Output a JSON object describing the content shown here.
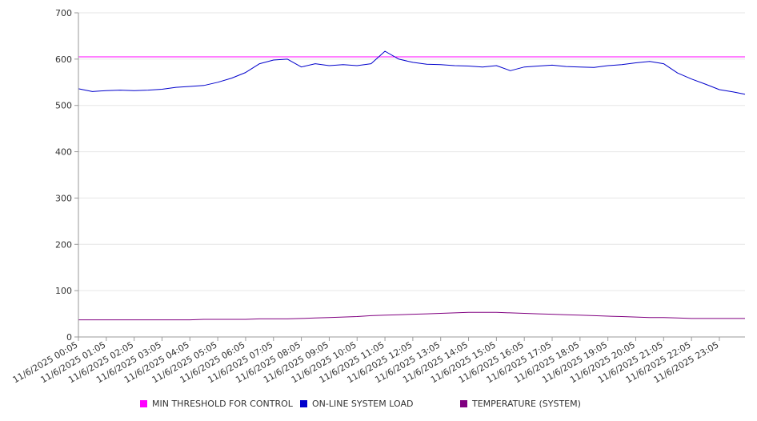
{
  "chart_data": {
    "type": "line",
    "title": "",
    "xlabel": "",
    "ylabel": "",
    "ylim": [
      0,
      700
    ],
    "yticks": [
      0,
      100,
      200,
      300,
      400,
      500,
      600,
      700
    ],
    "grid": true,
    "legend_position": "bottom",
    "x_start": "11/6/2025 00:05",
    "x_tick_labels": [
      "11/6/2025 00:05",
      "11/6/2025 01:05",
      "11/6/2025 02:05",
      "11/6/2025 03:05",
      "11/6/2025 04:05",
      "11/6/2025 05:05",
      "11/6/2025 06:05",
      "11/6/2025 07:05",
      "11/6/2025 08:05",
      "11/6/2025 09:05",
      "11/6/2025 10:05",
      "11/6/2025 11:05",
      "11/6/2025 12:05",
      "11/6/2025 13:05",
      "11/6/2025 14:05",
      "11/6/2025 15:05",
      "11/6/2025 16:05",
      "11/6/2025 17:05",
      "11/6/2025 18:05",
      "11/6/2025 19:05",
      "11/6/2025 20:05",
      "11/6/2025 21:05",
      "11/6/2025 22:05",
      "11/6/2025 23:05"
    ],
    "x_hours": [
      0,
      0.5,
      1,
      1.5,
      2,
      2.5,
      3,
      3.5,
      4,
      4.5,
      5,
      5.5,
      6,
      6.5,
      7,
      7.5,
      8,
      8.5,
      9,
      9.5,
      10,
      10.5,
      11,
      11.5,
      12,
      12.5,
      13,
      13.5,
      14,
      14.5,
      15,
      15.5,
      16,
      16.5,
      17,
      17.5,
      18,
      18.5,
      19,
      19.5,
      20,
      20.5,
      21,
      21.5,
      22,
      22.5,
      23,
      23.5,
      23.92
    ],
    "series": [
      {
        "name": "MIN THRESHOLD FOR CONTROL",
        "color": "#ff00ff",
        "values": [
          605,
          605,
          605,
          605,
          605,
          605,
          605,
          605,
          605,
          605,
          605,
          605,
          605,
          605,
          605,
          605,
          605,
          605,
          605,
          605,
          605,
          605,
          605,
          605,
          605,
          605,
          605,
          605,
          605,
          605,
          605,
          605,
          605,
          605,
          605,
          605,
          605,
          605,
          605,
          605,
          605,
          605,
          605,
          605,
          605,
          605,
          605,
          605,
          605
        ]
      },
      {
        "name": "ON-LINE SYSTEM LOAD",
        "color": "#0000cc",
        "values": [
          536,
          530,
          532,
          533,
          532,
          533,
          535,
          539,
          541,
          543,
          550,
          559,
          571,
          590,
          598,
          600,
          583,
          590,
          586,
          588,
          586,
          590,
          617,
          600,
          593,
          589,
          588,
          586,
          585,
          583,
          586,
          575,
          583,
          585,
          587,
          584,
          583,
          582,
          586,
          588,
          592,
          595,
          590,
          570,
          557,
          546,
          534,
          529,
          524
        ]
      },
      {
        "name": "TEMPERATURE (SYSTEM)",
        "color": "#800080",
        "values": [
          37,
          37,
          37,
          37,
          37,
          37,
          37,
          37,
          37,
          38,
          38,
          38,
          38,
          39,
          39,
          39,
          40,
          41,
          42,
          43,
          44,
          46,
          47,
          48,
          49,
          50,
          51,
          52,
          53,
          53,
          53,
          52,
          51,
          50,
          49,
          48,
          47,
          46,
          45,
          44,
          43,
          42,
          42,
          41,
          40,
          40,
          40,
          40,
          40
        ]
      }
    ]
  }
}
